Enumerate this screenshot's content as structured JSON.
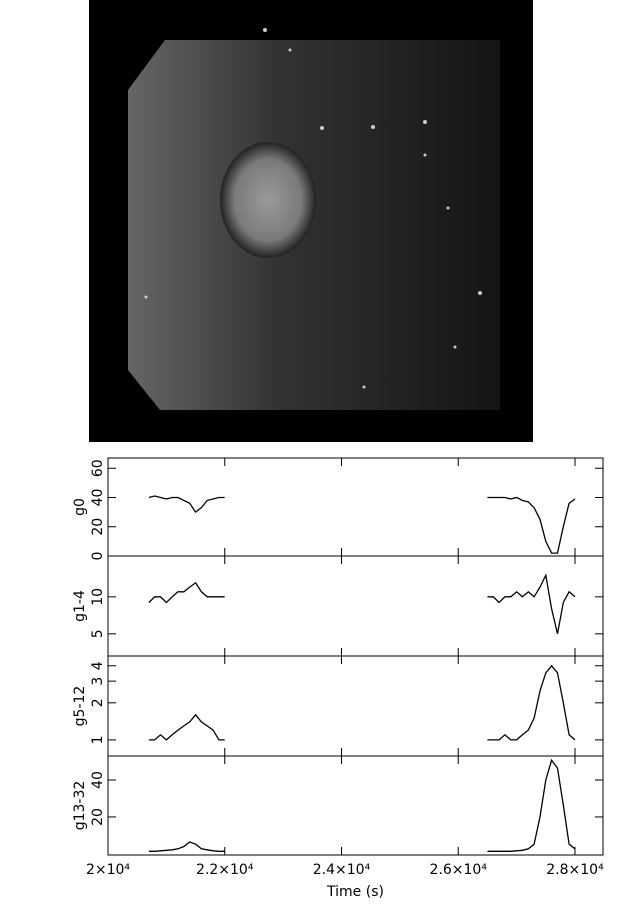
{
  "chart_data": [
    {
      "type": "line",
      "ylabel": "g0",
      "color": "#000000",
      "log": false,
      "x": [
        20700,
        20800,
        20900,
        21000,
        21100,
        21200,
        21300,
        21400,
        21500,
        21600,
        21700,
        21800,
        21900,
        22000,
        24000,
        26500,
        26600,
        26700,
        26800,
        26900,
        27000,
        27100,
        27200,
        27300,
        27400,
        27500,
        27600,
        27700,
        27800,
        27900,
        28000
      ],
      "values": [
        40,
        41,
        40,
        39,
        40,
        40,
        38,
        36,
        30,
        33,
        38,
        39,
        40,
        40,
        null,
        40,
        40,
        40,
        40,
        39,
        40,
        38,
        37,
        33,
        25,
        10,
        2,
        2,
        20,
        36,
        39
      ],
      "xlim": [
        20000,
        28480
      ],
      "ylim": [
        0,
        67
      ],
      "yticks": [
        0,
        20,
        40,
        60
      ]
    },
    {
      "type": "line",
      "ylabel": "g1-4",
      "color": "#000000",
      "log": true,
      "x": [
        20700,
        20800,
        20900,
        21000,
        21100,
        21200,
        21300,
        21400,
        21500,
        21600,
        21700,
        21800,
        21900,
        22000,
        24000,
        26500,
        26600,
        26700,
        26800,
        26900,
        27000,
        27100,
        27200,
        27300,
        27400,
        27500,
        27600,
        27700,
        27800,
        27900,
        28000
      ],
      "values": [
        9,
        10,
        10,
        9,
        10,
        11,
        11,
        12,
        13,
        11,
        10,
        10,
        10,
        10,
        null,
        10,
        10,
        9,
        10,
        10,
        11,
        10,
        11,
        10,
        12,
        15,
        8,
        5,
        9,
        11,
        10
      ],
      "xlim": [
        20000,
        28480
      ],
      "ylim": [
        3.3,
        21.5
      ],
      "yticks": [
        5,
        10
      ]
    },
    {
      "type": "line",
      "ylabel": "g5-12",
      "color": "#000000",
      "log": true,
      "x": [
        20700,
        20800,
        20900,
        21000,
        21100,
        21200,
        21300,
        21400,
        21500,
        21600,
        21700,
        21800,
        21900,
        22000,
        24000,
        26500,
        26600,
        26700,
        26800,
        26900,
        27000,
        27100,
        27200,
        27300,
        27400,
        27500,
        27600,
        27700,
        27800,
        27900,
        28000
      ],
      "values": [
        1.0,
        1.0,
        1.1,
        1.0,
        1.1,
        1.2,
        1.3,
        1.4,
        1.6,
        1.4,
        1.3,
        1.2,
        1.0,
        1.0,
        null,
        1.0,
        1.0,
        1.0,
        1.1,
        1.0,
        1.0,
        1.1,
        1.2,
        1.5,
        2.5,
        3.5,
        4.0,
        3.5,
        2.0,
        1.1,
        1.0
      ],
      "xlim": [
        20000,
        28480
      ],
      "ylim": [
        0.74,
        4.8
      ],
      "yticks": [
        1,
        2,
        3,
        4
      ]
    },
    {
      "type": "line",
      "ylabel": "g13-32",
      "xlabel": "Time (s)",
      "color": "#000000",
      "log": true,
      "x": [
        20700,
        20800,
        20900,
        21000,
        21100,
        21200,
        21300,
        21400,
        21500,
        21600,
        21700,
        21800,
        21900,
        22000,
        24000,
        26500,
        26600,
        26700,
        26800,
        26900,
        27000,
        27100,
        27200,
        27300,
        27400,
        27500,
        27600,
        27700,
        27800,
        27900,
        28000
      ],
      "values": [
        10.5,
        10.5,
        10.6,
        10.7,
        10.8,
        11,
        11.5,
        12.5,
        12,
        11,
        10.8,
        10.6,
        10.5,
        10.5,
        null,
        10.5,
        10.5,
        10.5,
        10.5,
        10.5,
        10.6,
        10.7,
        11,
        12,
        20,
        40,
        58,
        50,
        25,
        12,
        11
      ],
      "xlim": [
        20000,
        28480
      ],
      "ylim": [
        9.8,
        62.7
      ],
      "yticks": [
        20,
        40
      ],
      "xticks": [
        {
          "value": 20000,
          "label": "2×10⁴"
        },
        {
          "value": 22000,
          "label": "2.2×10⁴"
        },
        {
          "value": 24000,
          "label": "2.4×10⁴"
        },
        {
          "value": 26000,
          "label": "2.6×10⁴"
        },
        {
          "value": 28000,
          "label": "2.8×10⁴"
        }
      ]
    }
  ]
}
